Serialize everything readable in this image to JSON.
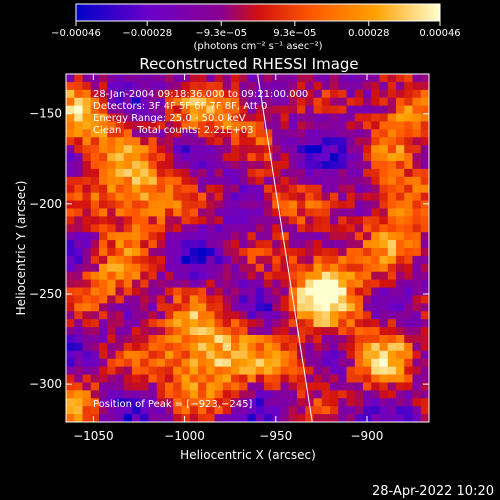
{
  "chart_data": {
    "type": "heatmap",
    "title": "Reconstructed RHESSI Image",
    "xlabel": "Heliocentric X (arcsec)",
    "ylabel": "Heliocentric Y (arcsec)",
    "xlim": [
      -1065,
      -866
    ],
    "ylim": [
      -321,
      -128
    ],
    "x_ticks": [
      -1050,
      -1000,
      -950,
      -900
    ],
    "x_tick_labels": [
      "−1050",
      "−1000",
      "−950",
      "−900"
    ],
    "y_ticks": [
      -150,
      -200,
      -250,
      -300
    ],
    "y_tick_labels": [
      "−150",
      "−200",
      "−250",
      "−300"
    ],
    "colorbar": {
      "range": [
        -0.00046,
        0.00046
      ],
      "ticks": [
        -0.00046,
        -0.00028,
        -9.3e-05,
        9.3e-05,
        0.00028,
        0.00046
      ],
      "tick_labels": [
        "−0.00046",
        "−0.00028",
        "−9.3e−05",
        "9.3e−05",
        "0.00028",
        "0.00046"
      ],
      "unit_label": "(photons cm⁻² s⁻¹ asec⁻²)",
      "colors": [
        "#0000c8",
        "#8c00c8",
        "#cc1010",
        "#ff5a00",
        "#ffa000",
        "#ffffc8"
      ]
    },
    "annotations": [
      "28-Jan-2004 09:18:36.000 to 09:21:00.000",
      "Detectors: 3F 4F 5F 6F 7F 8F, Att 0",
      "Energy Range: 25.0 - 50.0 keV",
      "Clean     Total counts: 2.21E+03",
      "Position of Peak = [−923,−245]"
    ],
    "peak": {
      "x": -923,
      "y": -245
    },
    "sources": [
      {
        "x": -923,
        "y": -245,
        "amp": 1.0,
        "sx": 14,
        "sy": 16
      },
      {
        "x": -990,
        "y": -283,
        "amp": 0.92,
        "sx": 20,
        "sy": 18
      },
      {
        "x": -1028,
        "y": -195,
        "amp": 0.82,
        "sx": 18,
        "sy": 16
      },
      {
        "x": -1055,
        "y": -155,
        "amp": 0.7,
        "sx": 14,
        "sy": 14
      },
      {
        "x": -978,
        "y": -150,
        "amp": 0.6,
        "sx": 20,
        "sy": 12
      },
      {
        "x": -880,
        "y": -148,
        "amp": 0.65,
        "sx": 16,
        "sy": 14
      },
      {
        "x": -882,
        "y": -205,
        "amp": 0.7,
        "sx": 14,
        "sy": 20
      },
      {
        "x": -890,
        "y": -285,
        "amp": 0.55,
        "sx": 14,
        "sy": 18
      },
      {
        "x": -950,
        "y": -200,
        "amp": 0.5,
        "sx": 12,
        "sy": 12
      },
      {
        "x": -1040,
        "y": -245,
        "amp": 0.55,
        "sx": 14,
        "sy": 14
      },
      {
        "x": -1060,
        "y": -310,
        "amp": 0.5,
        "sx": 12,
        "sy": 12
      },
      {
        "x": -940,
        "y": -290,
        "amp": 0.4,
        "sx": 14,
        "sy": 12
      }
    ],
    "limb_line": [
      [
        -960,
        -128
      ],
      [
        -930,
        -321
      ]
    ]
  },
  "footer": {
    "timestamp": "28-Apr-2022 10:20"
  }
}
